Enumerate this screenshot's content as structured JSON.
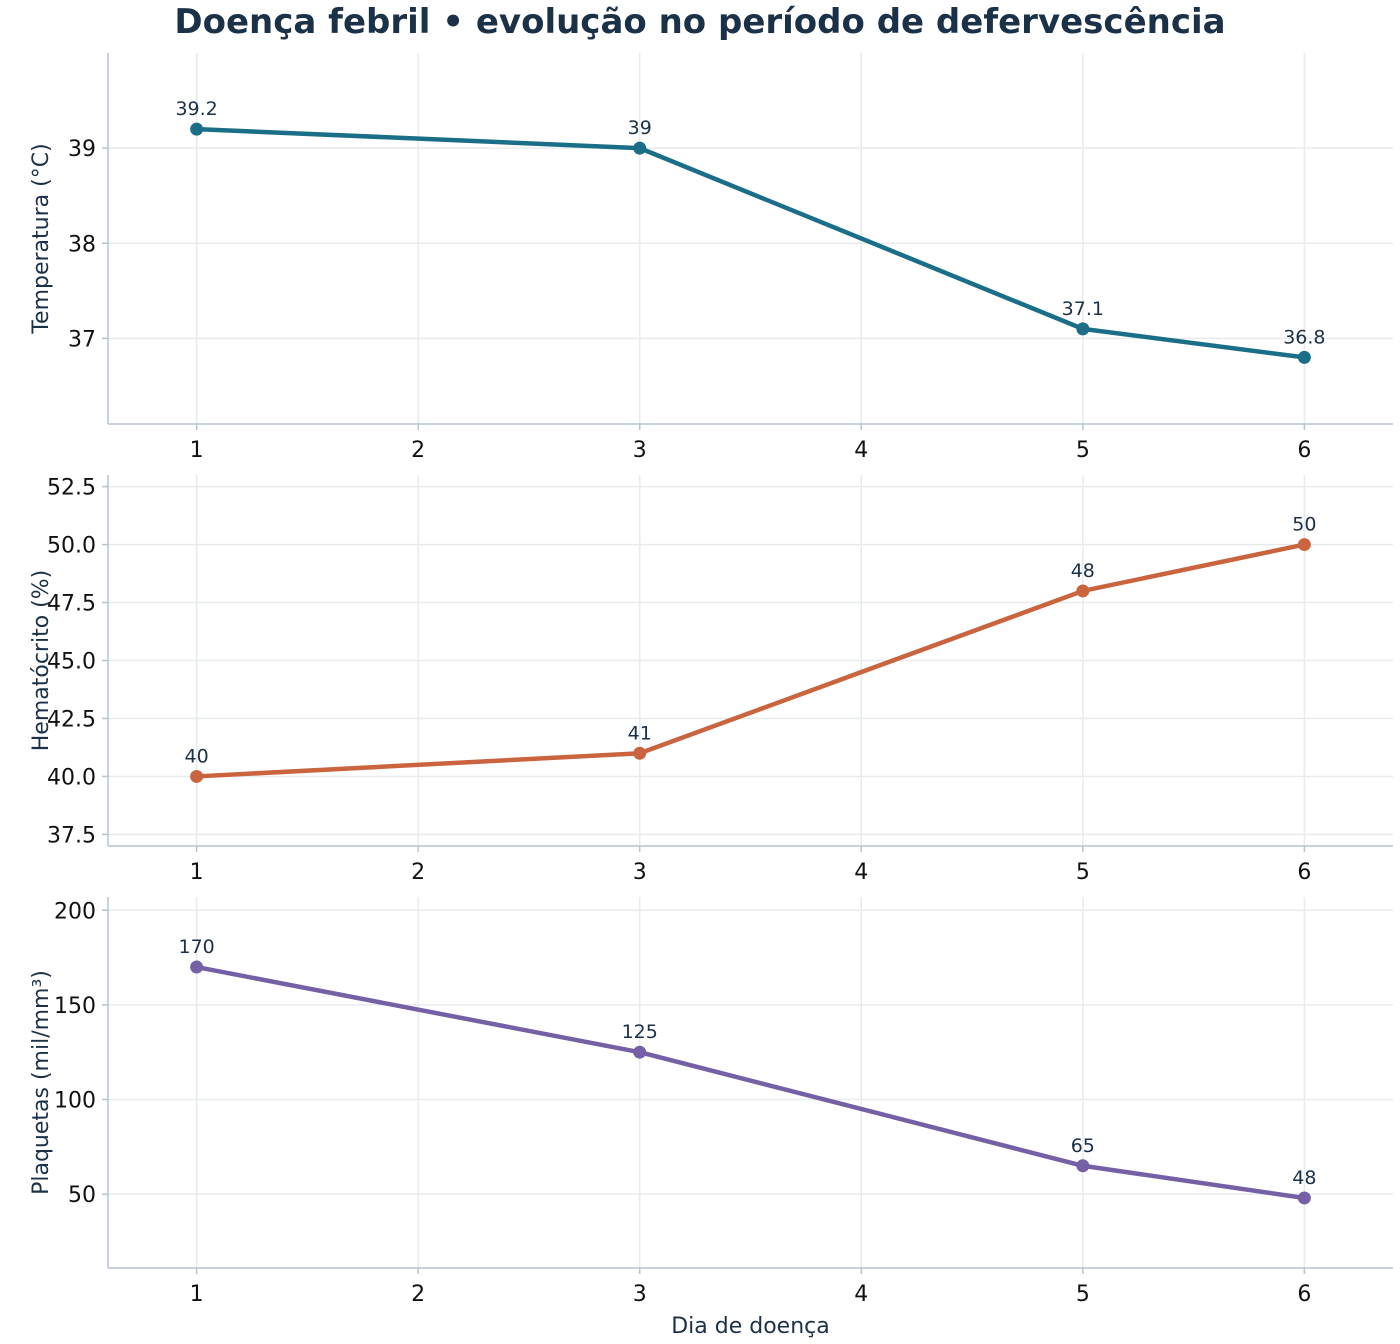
{
  "chart_data": {
    "type": "line",
    "title": "Doença febril • evolução no período de defervescência",
    "xlabel": "Dia de doença",
    "x_ticks": [
      1,
      2,
      3,
      4,
      5,
      6
    ],
    "x": [
      1,
      3,
      5,
      6
    ],
    "xlim": [
      0.6,
      6.4
    ],
    "grid": true,
    "panels": [
      {
        "ylabel": "Temperatura (°C)",
        "color": "#1b6e87",
        "values": [
          39.2,
          39,
          37.1,
          36.8
        ],
        "value_labels": [
          "39.2",
          "39",
          "37.1",
          "36.8"
        ],
        "ylim": [
          36.1,
          40.0
        ],
        "y_ticks": [
          37,
          38,
          39
        ],
        "y_tick_labels": [
          "37",
          "38",
          "39"
        ]
      },
      {
        "ylabel": "Hematócrito (%)",
        "color": "#c9643e",
        "values": [
          40,
          41,
          48,
          50
        ],
        "value_labels": [
          "40",
          "41",
          "48",
          "50"
        ],
        "ylim": [
          37.0,
          53.0
        ],
        "y_ticks": [
          37.5,
          40.0,
          42.5,
          45.0,
          47.5,
          50.0,
          52.5
        ],
        "y_tick_labels": [
          "37.5",
          "40.0",
          "42.5",
          "45.0",
          "47.5",
          "50.0",
          "52.5"
        ]
      },
      {
        "ylabel": "Plaquetas (mil/mm³)",
        "color": "#7560a6",
        "values": [
          170,
          125,
          65,
          48
        ],
        "value_labels": [
          "170",
          "125",
          "65",
          "48"
        ],
        "ylim": [
          11,
          207
        ],
        "y_ticks": [
          50,
          100,
          150,
          200
        ],
        "y_tick_labels": [
          "50",
          "100",
          "150",
          "200"
        ]
      }
    ]
  }
}
